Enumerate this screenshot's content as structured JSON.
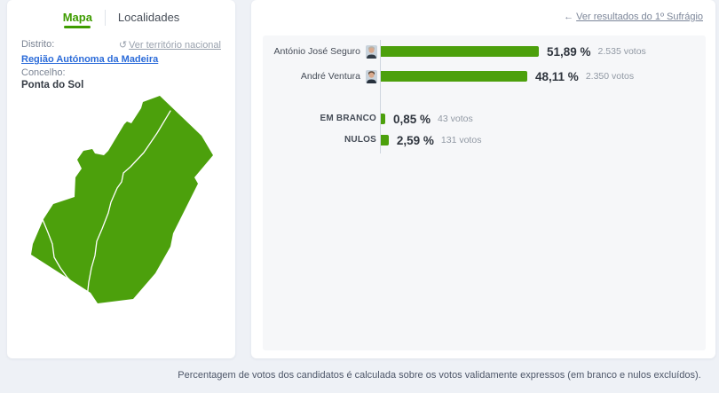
{
  "page": {
    "footnote": "Percentagem de votos dos candidatos é calculada sobre os votos validamente expressos (em branco e nulos excluídos)."
  },
  "left_panel": {
    "tabs": [
      {
        "label": "Mapa"
      },
      {
        "label": "Localidades"
      }
    ],
    "district_label": "Distrito:",
    "district_link": "Região Autónoma da Madeira",
    "municipality_label": "Concelho:",
    "municipality_value": "Ponta do Sol",
    "national_link": "Ver território nacional",
    "restore_icon": "↺",
    "map_color": "#4ca00c"
  },
  "right_panel": {
    "back_link": "Ver resultados do 1º Sufrágio",
    "back_arrow": "←"
  },
  "chart_data": {
    "type": "bar",
    "orientation": "horizontal",
    "bar_color": "#4ca00c",
    "categories": [
      "António José Seguro",
      "André Ventura",
      "EM BRANCO",
      "NULOS"
    ],
    "values_percent": [
      51.89,
      48.11,
      0.85,
      2.59
    ],
    "votes": [
      2535,
      2350,
      43,
      131
    ],
    "rows": [
      {
        "label": "António José Seguro",
        "percent": "51,89 %",
        "percent_value": 51.89,
        "votes": "2.535 votos",
        "avatar": {
          "hair": "#b7b2a9",
          "skin": "#d9a98c",
          "suit": "#323c47",
          "bg": "#c9d3dc"
        }
      },
      {
        "label": "André Ventura",
        "percent": "48,11 %",
        "percent_value": 48.11,
        "votes": "2.350 votos",
        "avatar": {
          "hair": "#5a4636",
          "skin": "#d9a98c",
          "suit": "#27313d",
          "bg": "#c9d3dc"
        }
      },
      {
        "label": "EM BRANCO",
        "percent": "0,85 %",
        "percent_value": 0.85,
        "votes": "43 votos"
      },
      {
        "label": "NULOS",
        "percent": "2,59 %",
        "percent_value": 2.59,
        "votes": "131 votos"
      }
    ]
  }
}
